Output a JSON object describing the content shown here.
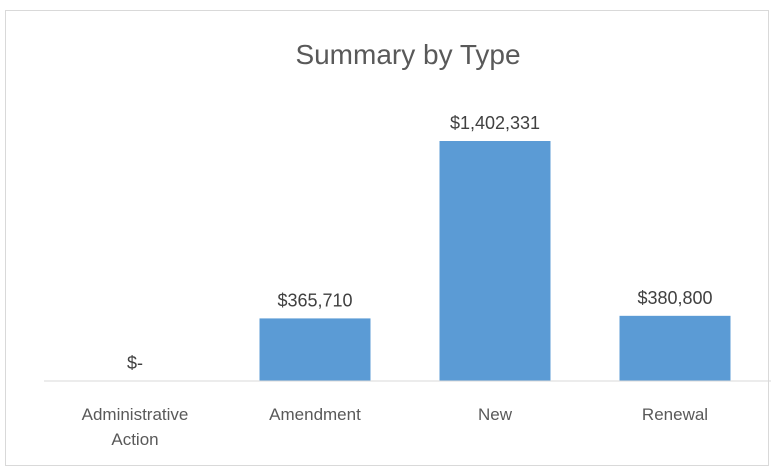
{
  "chart_data": {
    "type": "bar",
    "title": "Summary by Type",
    "xlabel": "",
    "ylabel": "",
    "categories": [
      "Administrative Action",
      "Amendment",
      "New",
      "Renewal"
    ],
    "category_label_lines": [
      [
        "Administrative",
        "Action"
      ],
      [
        "Amendment"
      ],
      [
        "New"
      ],
      [
        "Renewal"
      ]
    ],
    "values": [
      0,
      365710,
      1402331,
      380800
    ],
    "data_labels": [
      "$-",
      "$365,710",
      "$1,402,331",
      "$380,800"
    ],
    "ylim": [
      0,
      1402331
    ],
    "grid": false,
    "legend": "none",
    "colors": {
      "bar": "#5b9bd5",
      "axis": "#d9d9d9",
      "title": "#595959",
      "label": "#404040"
    }
  }
}
